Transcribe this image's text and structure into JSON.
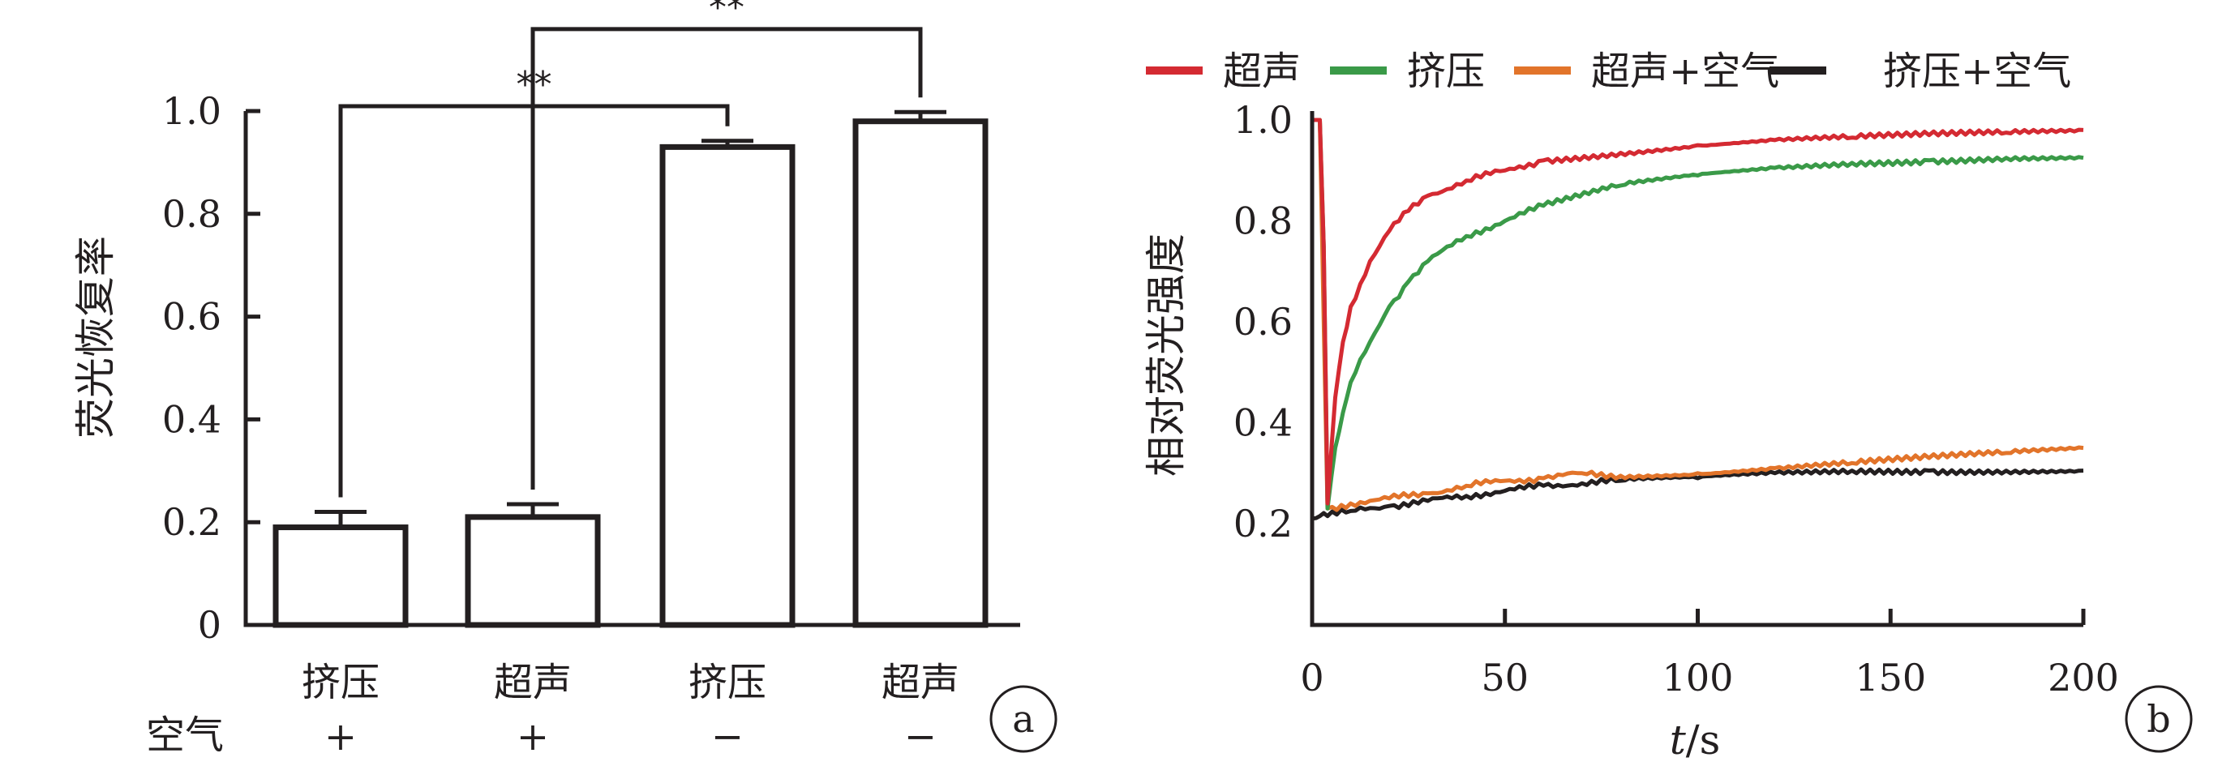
{
  "chart_data": [
    {
      "type": "bar",
      "panel_label": "a",
      "ylabel": "荧光恢复率",
      "ylim": [
        0,
        1.0
      ],
      "yticks": [
        "0",
        "0.2",
        "0.4",
        "0.6",
        "0.8",
        "1.0"
      ],
      "ytick_values": [
        0,
        0.2,
        0.4,
        0.6,
        0.8,
        1.0
      ],
      "categories": [
        "挤压",
        "超声",
        "挤压",
        "超声"
      ],
      "row_label": "空气",
      "row_values": [
        "+",
        "+",
        "−",
        "−"
      ],
      "values": [
        0.19,
        0.21,
        0.93,
        0.98
      ],
      "errors": [
        0.03,
        0.025,
        0.012,
        0.018
      ],
      "bar_fill": "#ffffff",
      "bar_stroke": "#231f20",
      "significance": [
        {
          "from": 0,
          "to": 2,
          "label": "**",
          "y": 1.0
        },
        {
          "from": 1,
          "to": 3,
          "label": "**",
          "y": 1.15
        }
      ]
    },
    {
      "type": "line",
      "panel_label": "b",
      "ylabel": "相对荧光强度",
      "xlabel_italic": "t",
      "xlabel_rest": "/s",
      "xlim": [
        0,
        200
      ],
      "ylim": [
        0.2,
        1.0
      ],
      "xticks": [
        "0",
        "50",
        "100",
        "150",
        "200"
      ],
      "xtick_values": [
        0,
        50,
        100,
        150,
        200
      ],
      "yticks": [
        "0.2",
        "0.4",
        "0.6",
        "0.8",
        "1.0"
      ],
      "ytick_values": [
        0.2,
        0.4,
        0.6,
        0.8,
        1.0
      ],
      "legend_position": "top",
      "series": [
        {
          "name": "超声",
          "color": "#d42a32",
          "x": [
            0,
            1,
            2,
            3,
            4,
            6,
            8,
            10,
            15,
            20,
            25,
            30,
            40,
            50,
            60,
            80,
            100,
            120,
            140,
            160,
            180,
            200
          ],
          "y": [
            1.0,
            1.0,
            1.0,
            0.75,
            0.24,
            0.45,
            0.56,
            0.63,
            0.72,
            0.78,
            0.82,
            0.85,
            0.88,
            0.9,
            0.92,
            0.935,
            0.95,
            0.96,
            0.965,
            0.97,
            0.975,
            0.98
          ]
        },
        {
          "name": "挤压",
          "color": "#3a9a48",
          "x": [
            0,
            1,
            2,
            3,
            4,
            6,
            8,
            10,
            15,
            20,
            25,
            30,
            40,
            50,
            60,
            80,
            100,
            120,
            140,
            160,
            180,
            200
          ],
          "y": [
            1.0,
            1.0,
            1.0,
            0.75,
            0.23,
            0.35,
            0.42,
            0.48,
            0.56,
            0.63,
            0.68,
            0.72,
            0.77,
            0.8,
            0.83,
            0.87,
            0.89,
            0.905,
            0.915,
            0.92,
            0.925,
            0.925
          ]
        },
        {
          "name": "超声+空气",
          "color": "#e2742a",
          "x": [
            0,
            1,
            2,
            3,
            4,
            10,
            20,
            30,
            40,
            50,
            60,
            70,
            80,
            100,
            120,
            140,
            160,
            180,
            200
          ],
          "y": [
            1.0,
            1.0,
            1.0,
            0.6,
            0.23,
            0.24,
            0.25,
            0.26,
            0.275,
            0.285,
            0.29,
            0.3,
            0.295,
            0.3,
            0.31,
            0.32,
            0.33,
            0.34,
            0.35
          ]
        },
        {
          "name": "挤压+空气",
          "color": "#231f20",
          "x": [
            0,
            2,
            4,
            10,
            20,
            30,
            40,
            50,
            60,
            70,
            80,
            100,
            120,
            140,
            160,
            180,
            200
          ],
          "y": [
            0.21,
            0.215,
            0.215,
            0.225,
            0.235,
            0.245,
            0.255,
            0.265,
            0.275,
            0.28,
            0.285,
            0.29,
            0.3,
            0.305,
            0.305,
            0.305,
            0.305
          ]
        }
      ]
    }
  ]
}
